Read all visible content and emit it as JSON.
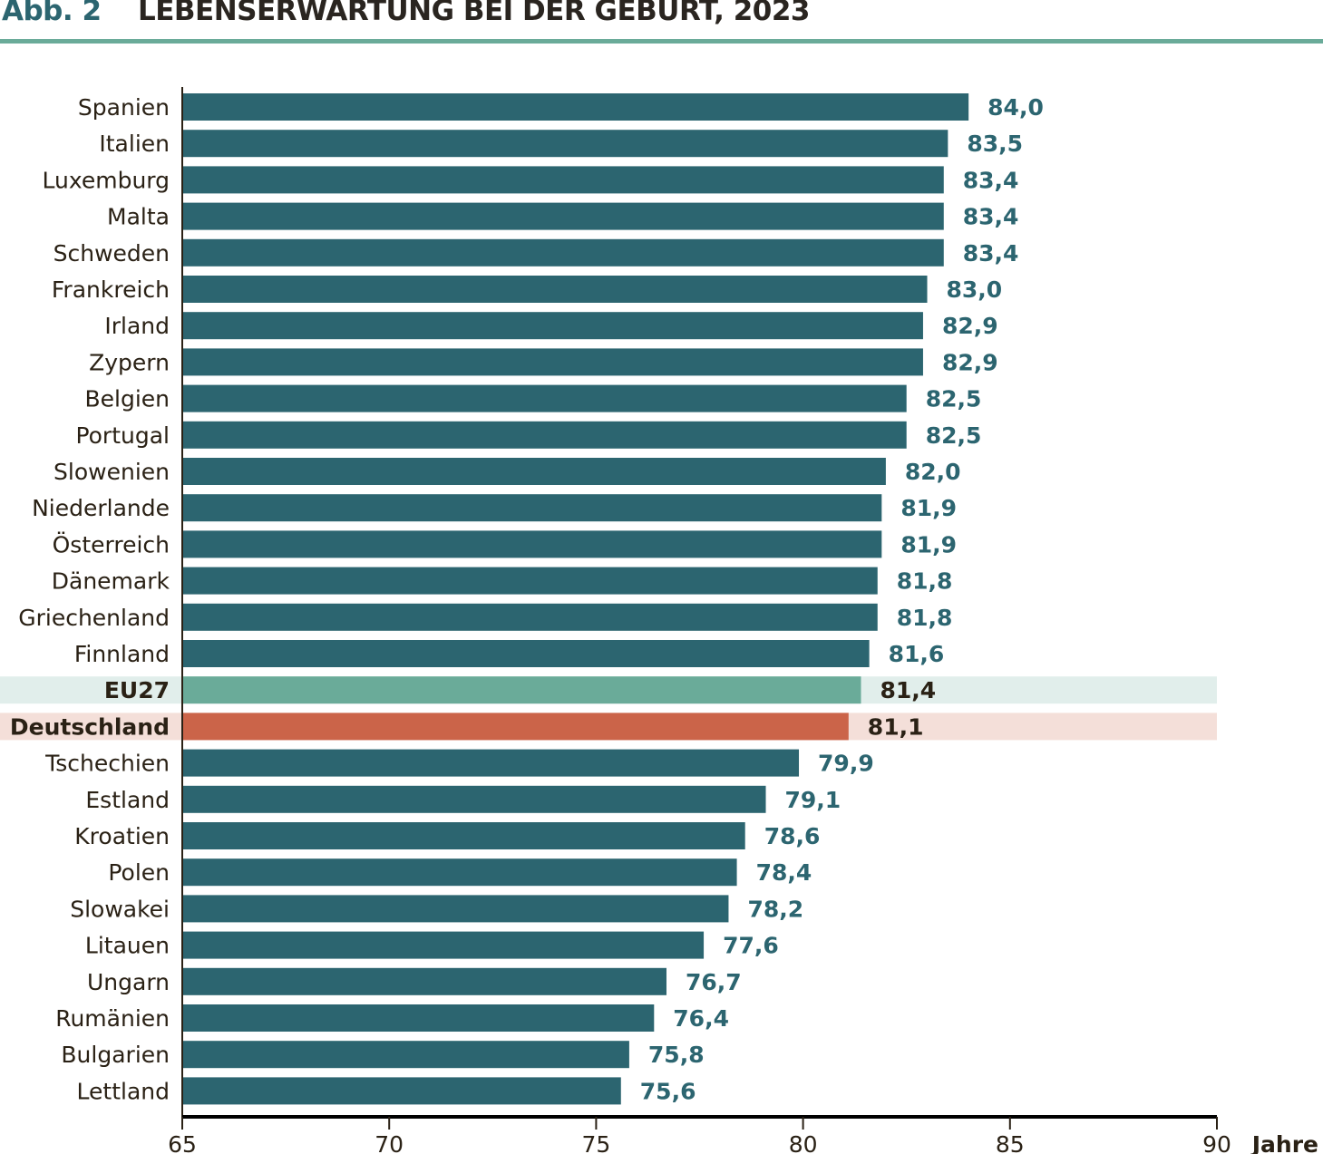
{
  "header": {
    "figure_number": "Abb. 2",
    "title": "LEBENSERWARTUNG BEI DER GEBURT, 2023"
  },
  "colors": {
    "bar": "#2c6570",
    "eu_bar": "#6aab99",
    "eu_band": "#e1eeeb",
    "de_bar": "#cb6449",
    "de_band": "#f4dfd9",
    "accent_rule": "#6aab99",
    "value_default": "#2c6570",
    "value_highlight": "#2a2115"
  },
  "chart_data": {
    "type": "bar",
    "orientation": "horizontal",
    "title": "LEBENSERWARTUNG BEI DER GEBURT, 2023",
    "xlabel": "Jahre",
    "ylabel": "",
    "xlim": [
      65,
      90
    ],
    "xticks": [
      65,
      70,
      75,
      80,
      85,
      90
    ],
    "xtick_labels": [
      "65",
      "70",
      "75",
      "80",
      "85",
      "90"
    ],
    "grid": false,
    "categories": [
      "Spanien",
      "Italien",
      "Luxemburg",
      "Malta",
      "Schweden",
      "Frankreich",
      "Irland",
      "Zypern",
      "Belgien",
      "Portugal",
      "Slowenien",
      "Niederlande",
      "Österreich",
      "Dänemark",
      "Griechenland",
      "Finnland",
      "EU27",
      "Deutschland",
      "Tschechien",
      "Estland",
      "Kroatien",
      "Polen",
      "Slowakei",
      "Litauen",
      "Ungarn",
      "Rumänien",
      "Bulgarien",
      "Lettland"
    ],
    "values": [
      84.0,
      83.5,
      83.4,
      83.4,
      83.4,
      83.0,
      82.9,
      82.9,
      82.5,
      82.5,
      82.0,
      81.9,
      81.9,
      81.8,
      81.8,
      81.6,
      81.4,
      81.1,
      79.9,
      79.1,
      78.6,
      78.4,
      78.2,
      77.6,
      76.7,
      76.4,
      75.8,
      75.6
    ],
    "value_labels": [
      "84,0",
      "83,5",
      "83,4",
      "83,4",
      "83,4",
      "83,0",
      "82,9",
      "82,9",
      "82,5",
      "82,5",
      "82,0",
      "81,9",
      "81,9",
      "81,8",
      "81,8",
      "81,6",
      "81,4",
      "81,1",
      "79,9",
      "79,1",
      "78,6",
      "78,4",
      "78,2",
      "77,6",
      "76,7",
      "76,4",
      "75,8",
      "75,6"
    ],
    "highlights": {
      "EU27": "eu",
      "Deutschland": "de"
    }
  }
}
